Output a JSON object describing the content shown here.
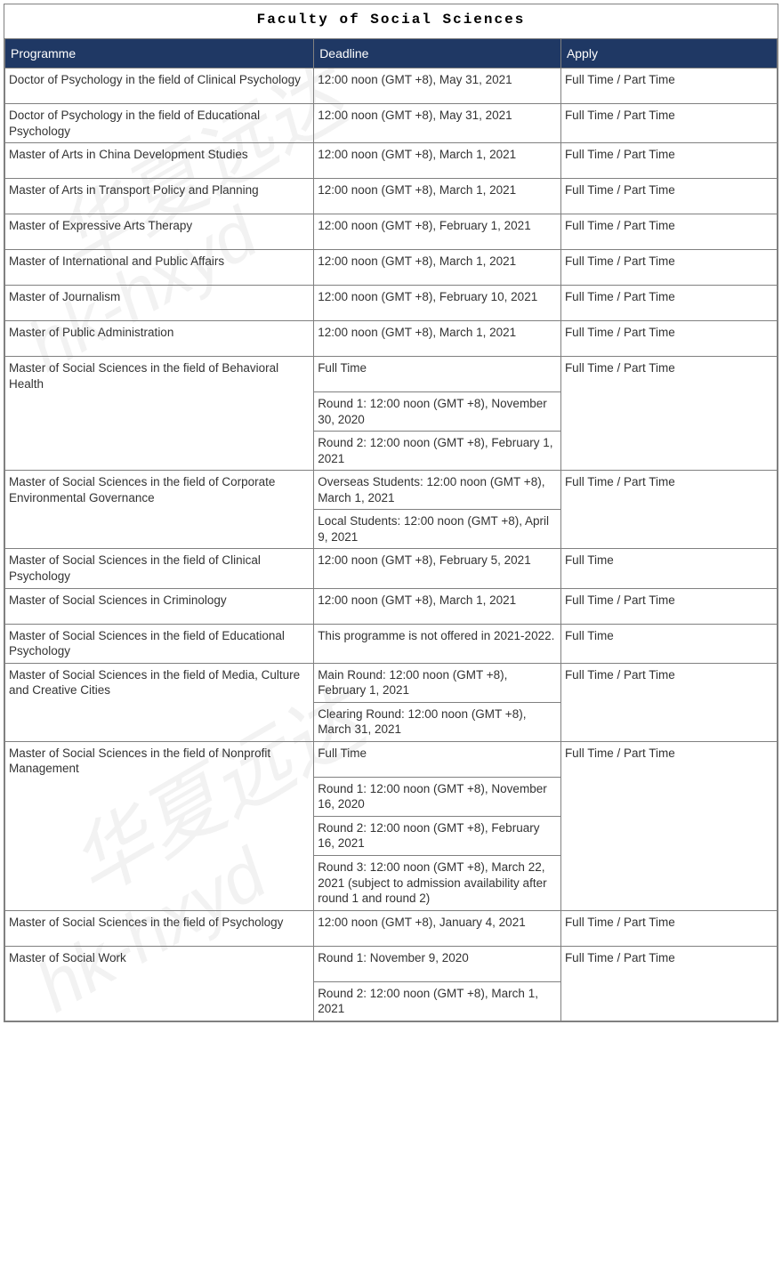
{
  "title": "Faculty of Social Sciences",
  "watermark_text_cn": "华夏远达",
  "watermark_text_en": "hk-hxyd",
  "columns": [
    "Programme",
    "Deadline",
    "Apply"
  ],
  "header_bg_color": "#1f3864",
  "header_text_color": "#ffffff",
  "border_color": "#808080",
  "cell_text_color": "#333333",
  "background_color": "#ffffff",
  "title_font": "Courier New",
  "body_font": "Segoe UI",
  "col_widths_pct": [
    40,
    32,
    28
  ],
  "rows": [
    {
      "programme": "Doctor of Psychology in the field of Clinical Psychology",
      "deadlines": [
        "12:00 noon (GMT +8), May 31, 2021"
      ],
      "apply": "Full Time / Part Time"
    },
    {
      "programme": "Doctor of Psychology in the field of Educational Psychology",
      "deadlines": [
        "12:00 noon (GMT +8), May 31, 2021"
      ],
      "apply": "Full Time / Part Time"
    },
    {
      "programme": "Master of Arts in China Development Studies",
      "deadlines": [
        "12:00 noon (GMT +8), March 1, 2021"
      ],
      "apply": "Full Time / Part Time"
    },
    {
      "programme": "Master of Arts in Transport Policy and Planning",
      "deadlines": [
        "12:00 noon (GMT +8), March 1, 2021"
      ],
      "apply": "Full Time / Part Time"
    },
    {
      "programme": "Master of Expressive Arts Therapy",
      "deadlines": [
        "12:00 noon (GMT +8), February 1, 2021"
      ],
      "apply": "Full Time / Part Time"
    },
    {
      "programme": "Master of International and Public Affairs",
      "deadlines": [
        "12:00 noon (GMT +8), March 1, 2021"
      ],
      "apply": "Full Time / Part Time"
    },
    {
      "programme": "Master of Journalism",
      "deadlines": [
        "12:00 noon (GMT +8), February 10, 2021"
      ],
      "apply": "Full Time / Part Time"
    },
    {
      "programme": "Master of Public Administration",
      "deadlines": [
        "12:00 noon (GMT +8), March 1, 2021"
      ],
      "apply": "Full Time / Part Time"
    },
    {
      "programme": "Master of Social Sciences in the field of Behavioral Health",
      "deadlines": [
        "Full Time",
        "Round 1: 12:00 noon (GMT +8), November 30, 2020",
        "Round 2: 12:00 noon (GMT +8), February 1, 2021"
      ],
      "apply": "Full Time / Part Time"
    },
    {
      "programme": "Master of Social Sciences in the field of Corporate Environmental Governance",
      "deadlines": [
        "Overseas Students: 12:00 noon (GMT +8), March 1, 2021",
        "Local Students: 12:00 noon (GMT +8), April 9, 2021"
      ],
      "apply": "Full Time / Part Time"
    },
    {
      "programme": "Master of Social Sciences in the field of Clinical Psychology",
      "deadlines": [
        "12:00 noon (GMT +8), February 5, 2021"
      ],
      "apply": "Full Time"
    },
    {
      "programme": "Master of Social Sciences in Criminology",
      "deadlines": [
        "12:00 noon (GMT +8), March 1, 2021"
      ],
      "apply": "Full Time / Part Time"
    },
    {
      "programme": "Master of Social Sciences in the field of Educational Psychology",
      "deadlines": [
        "This programme is not offered in 2021-2022."
      ],
      "apply": "Full Time"
    },
    {
      "programme": "Master of Social Sciences in the field of Media, Culture and Creative Cities",
      "deadlines": [
        "Main Round: 12:00 noon (GMT +8), February 1, 2021",
        "Clearing Round: 12:00 noon (GMT +8), March 31, 2021"
      ],
      "apply": "Full Time / Part Time"
    },
    {
      "programme": "Master of Social Sciences in the field of Nonprofit Management",
      "deadlines": [
        "Full Time",
        "Round 1: 12:00 noon (GMT +8), November 16, 2020",
        "Round 2: 12:00 noon (GMT +8), February 16, 2021",
        "Round 3: 12:00 noon (GMT +8), March 22, 2021 (subject to admission availability after round 1 and round 2)"
      ],
      "apply": "Full Time / Part Time"
    },
    {
      "programme": "Master of Social Sciences in the field of Psychology",
      "deadlines": [
        "12:00 noon (GMT +8), January 4, 2021"
      ],
      "apply": "Full Time / Part Time"
    },
    {
      "programme": "Master of Social Work",
      "deadlines": [
        "Round 1: November 9, 2020",
        "Round 2: 12:00 noon (GMT +8), March 1, 2021"
      ],
      "apply": "Full Time / Part Time"
    }
  ]
}
